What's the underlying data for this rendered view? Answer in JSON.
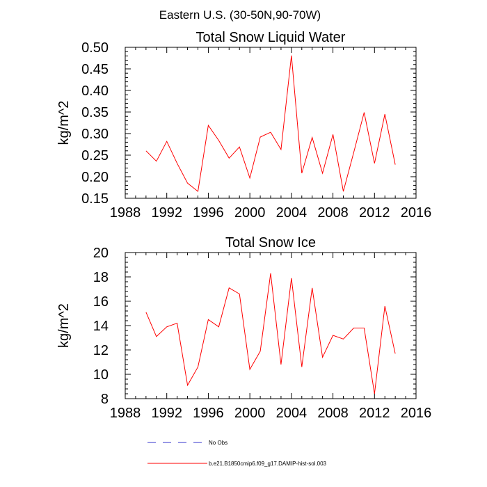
{
  "figure": {
    "title": "Eastern U.S. (30-50N,90-70W)",
    "legend": [
      {
        "label": "No Obs",
        "color": "#3333cc",
        "dash": true
      },
      {
        "label": "b.e21.B1850cmip6.f09_g17.DAMIP-hist-sol.003",
        "color": "#ff0000",
        "dash": false
      }
    ]
  },
  "chart_data": [
    {
      "type": "line",
      "title": "Total Snow Liquid Water",
      "xlabel": "",
      "ylabel": "kg/m^2",
      "xlim": [
        1988,
        2016
      ],
      "ylim": [
        0.15,
        0.5
      ],
      "xticks": [
        1988,
        1992,
        1996,
        2000,
        2004,
        2008,
        2012,
        2016
      ],
      "xtick_labels": [
        "1988",
        "1992",
        "1996",
        "2000",
        "2004",
        "2008",
        "2012",
        "2016"
      ],
      "yticks": [
        0.15,
        0.2,
        0.25,
        0.3,
        0.35,
        0.4,
        0.45,
        0.5
      ],
      "ytick_labels": [
        "0.15",
        "0.20",
        "0.25",
        "0.30",
        "0.35",
        "0.40",
        "0.45",
        "0.50"
      ],
      "grid": false,
      "series": [
        {
          "name": "b.e21.B1850cmip6.f09_g17.DAMIP-hist-sol.003",
          "color": "#ff0000",
          "x": [
            1990,
            1991,
            1992,
            1993,
            1994,
            1995,
            1996,
            1997,
            1998,
            1999,
            2000,
            2001,
            2002,
            2003,
            2004,
            2005,
            2006,
            2007,
            2008,
            2009,
            2010,
            2011,
            2012,
            2013,
            2014
          ],
          "y": [
            0.26,
            0.236,
            0.282,
            0.231,
            0.185,
            0.166,
            0.319,
            0.284,
            0.243,
            0.269,
            0.197,
            0.292,
            0.303,
            0.263,
            0.481,
            0.208,
            0.291,
            0.208,
            0.298,
            0.166,
            0.256,
            0.349,
            0.231,
            0.345,
            0.228
          ]
        }
      ]
    },
    {
      "type": "line",
      "title": "Total Snow Ice",
      "xlabel": "",
      "ylabel": "kg/m^2",
      "xlim": [
        1988,
        2016
      ],
      "ylim": [
        8,
        20
      ],
      "xticks": [
        1988,
        1992,
        1996,
        2000,
        2004,
        2008,
        2012,
        2016
      ],
      "xtick_labels": [
        "1988",
        "1992",
        "1996",
        "2000",
        "2004",
        "2008",
        "2012",
        "2016"
      ],
      "yticks": [
        8,
        10,
        12,
        14,
        16,
        18,
        20
      ],
      "ytick_labels": [
        "8",
        "10",
        "12",
        "14",
        "16",
        "18",
        "20"
      ],
      "grid": false,
      "series": [
        {
          "name": "b.e21.B1850cmip6.f09_g17.DAMIP-hist-sol.003",
          "color": "#ff0000",
          "x": [
            1990,
            1991,
            1992,
            1993,
            1994,
            1995,
            1996,
            1997,
            1998,
            1999,
            2000,
            2001,
            2002,
            2003,
            2004,
            2005,
            2006,
            2007,
            2008,
            2009,
            2010,
            2011,
            2012,
            2013,
            2014
          ],
          "y": [
            15.1,
            13.1,
            13.9,
            14.2,
            9.1,
            10.6,
            14.5,
            13.9,
            17.1,
            16.6,
            10.4,
            11.9,
            18.3,
            10.8,
            17.9,
            10.6,
            17.1,
            11.4,
            13.2,
            12.9,
            13.8,
            13.8,
            8.4,
            15.6,
            11.7
          ]
        }
      ]
    }
  ]
}
